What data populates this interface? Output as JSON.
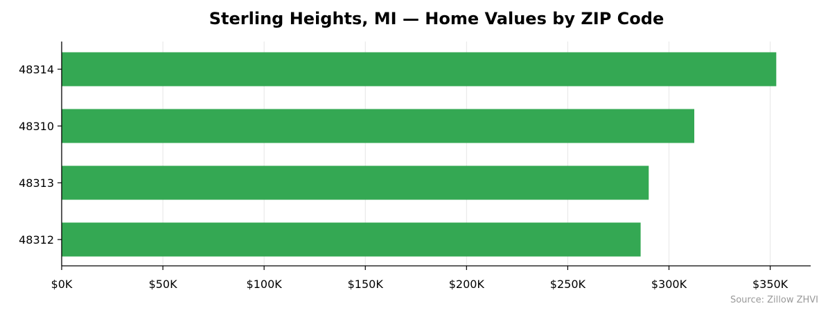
{
  "chart_data": {
    "type": "bar",
    "orientation": "horizontal",
    "title": "Sterling Heights, MI — Home Values by ZIP Code",
    "xlabel": "",
    "ylabel": "",
    "categories": [
      "48314",
      "48310",
      "48313",
      "48312"
    ],
    "values": [
      353000,
      312500,
      290000,
      286000
    ],
    "xlim": [
      0,
      370000
    ],
    "x_ticks": [
      0,
      50000,
      100000,
      150000,
      200000,
      250000,
      300000,
      350000
    ],
    "x_tick_labels": [
      "$0K",
      "$50K",
      "$100K",
      "$150K",
      "$200K",
      "$250K",
      "$300K",
      "$350K"
    ],
    "grid": "vertical",
    "legend": "none",
    "bar_color": "#34a853",
    "grid_color": "#e6e6e6",
    "source_note": "Source: Zillow ZHVI"
  }
}
